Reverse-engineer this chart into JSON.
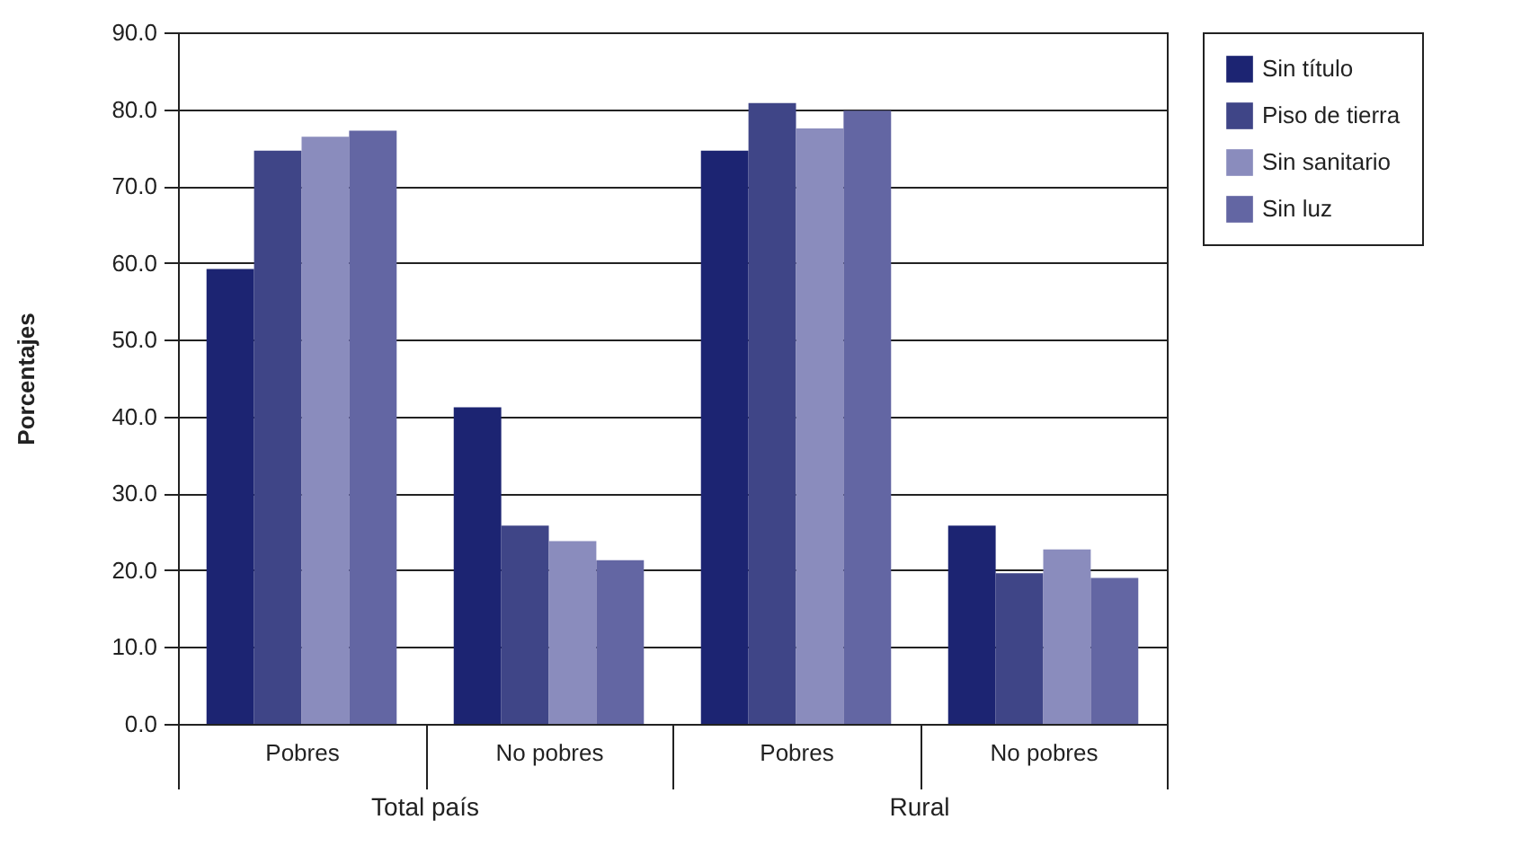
{
  "chart_data": {
    "type": "bar",
    "ylabel": "Porcentajes",
    "categories": [
      "Pobres",
      "No pobres",
      "Pobres",
      "No pobres"
    ],
    "series": [
      {
        "name": "Sin título",
        "color": "#1c2472",
        "values": [
          59.2,
          41.2,
          74.6,
          25.8
        ]
      },
      {
        "name": "Piso de tierra",
        "color": "#3f4587",
        "values": [
          74.6,
          25.8,
          80.8,
          19.6
        ]
      },
      {
        "name": "Sin sanitario",
        "color": "#8a8cbd",
        "values": [
          76.4,
          23.8,
          77.5,
          22.7
        ]
      },
      {
        "name": "Sin luz",
        "color": "#6366a3",
        "values": [
          77.2,
          21.3,
          79.8,
          19.0
        ]
      }
    ],
    "annotations": [
      "Total país",
      "Rural"
    ],
    "ylim": [
      0,
      90
    ],
    "yticks": [
      {
        "value": 0,
        "label": "0.0"
      },
      {
        "value": 10,
        "label": "10.0"
      },
      {
        "value": 20,
        "label": "20.0"
      },
      {
        "value": 30,
        "label": "30.0"
      },
      {
        "value": 40,
        "label": "40.0"
      },
      {
        "value": 50,
        "label": "50.0"
      },
      {
        "value": 60,
        "label": "60.0"
      },
      {
        "value": 70,
        "label": "70.0"
      },
      {
        "value": 80,
        "label": "80.0"
      },
      {
        "value": 90,
        "label": "90.0"
      }
    ],
    "grid": "y",
    "legend": "right"
  }
}
